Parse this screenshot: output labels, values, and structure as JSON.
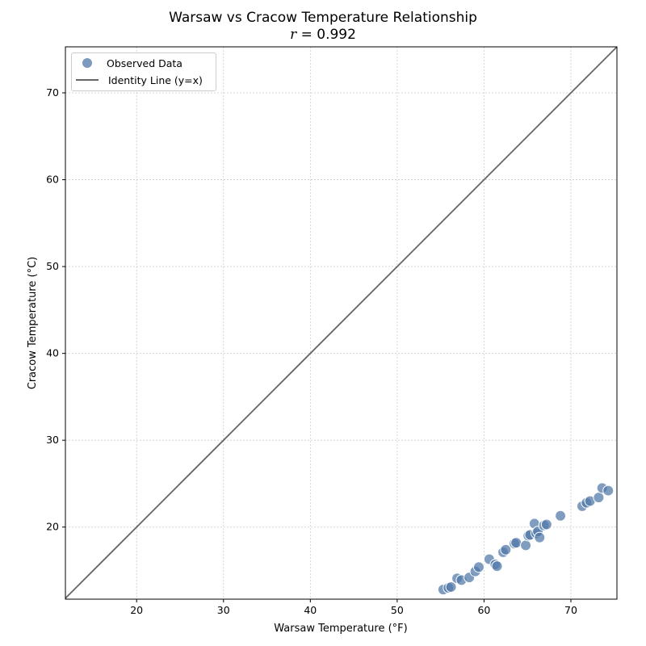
{
  "chart_data": {
    "type": "scatter",
    "title": "Warsaw vs Cracow Temperature Relationship",
    "subtitle": "r = 0.992",
    "subtitle_var": "r",
    "subtitle_value": "= 0.992",
    "xlabel": "Warsaw Temperature (°F)",
    "ylabel": "Cracow Temperature (°C)",
    "xlim": [
      11.8,
      75.3
    ],
    "ylim": [
      11.7,
      75.3
    ],
    "xticks": [
      20,
      30,
      40,
      50,
      60,
      70
    ],
    "yticks": [
      20,
      30,
      40,
      50,
      60,
      70
    ],
    "grid": true,
    "legend_position": "upper left",
    "legend": [
      "Observed Data",
      "Identity Line (y=x)"
    ],
    "series": [
      {
        "name": "Observed Data",
        "color": "#4f77a8",
        "points": [
          {
            "x": 55.3,
            "y": 12.8
          },
          {
            "x": 55.9,
            "y": 13.0
          },
          {
            "x": 56.2,
            "y": 13.1
          },
          {
            "x": 56.9,
            "y": 14.1
          },
          {
            "x": 57.4,
            "y": 13.9
          },
          {
            "x": 58.3,
            "y": 14.2
          },
          {
            "x": 59.0,
            "y": 14.9
          },
          {
            "x": 59.4,
            "y": 15.4
          },
          {
            "x": 60.6,
            "y": 16.3
          },
          {
            "x": 61.3,
            "y": 15.7
          },
          {
            "x": 61.5,
            "y": 15.5
          },
          {
            "x": 62.2,
            "y": 17.1
          },
          {
            "x": 62.5,
            "y": 17.4
          },
          {
            "x": 63.5,
            "y": 18.1
          },
          {
            "x": 63.7,
            "y": 18.2
          },
          {
            "x": 64.8,
            "y": 17.9
          },
          {
            "x": 65.1,
            "y": 19.0
          },
          {
            "x": 65.3,
            "y": 19.1
          },
          {
            "x": 65.8,
            "y": 20.4
          },
          {
            "x": 66.0,
            "y": 19.3
          },
          {
            "x": 66.2,
            "y": 19.5
          },
          {
            "x": 66.4,
            "y": 18.8
          },
          {
            "x": 66.9,
            "y": 20.2
          },
          {
            "x": 67.2,
            "y": 20.3
          },
          {
            "x": 68.8,
            "y": 21.3
          },
          {
            "x": 71.3,
            "y": 22.4
          },
          {
            "x": 71.8,
            "y": 22.8
          },
          {
            "x": 72.2,
            "y": 23.0
          },
          {
            "x": 73.2,
            "y": 23.4
          },
          {
            "x": 73.6,
            "y": 24.5
          },
          {
            "x": 74.3,
            "y": 24.2
          }
        ]
      },
      {
        "name": "Identity Line (y=x)",
        "color": "#666666",
        "type": "line",
        "points": [
          {
            "x": 11.8,
            "y": 11.8
          },
          {
            "x": 75.3,
            "y": 75.3
          }
        ]
      }
    ]
  }
}
